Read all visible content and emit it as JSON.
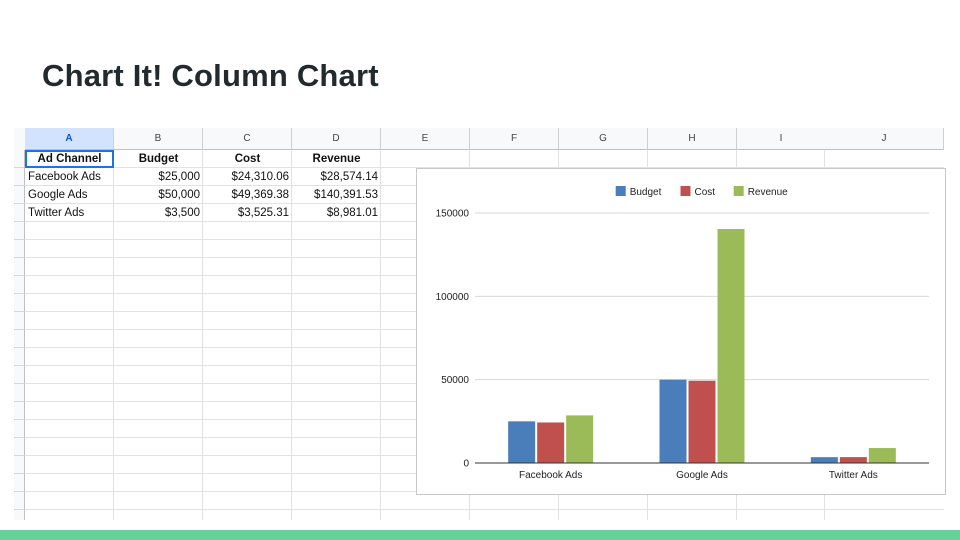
{
  "slide": {
    "title": "Chart It! Column Chart"
  },
  "sheet": {
    "columns": [
      "A",
      "B",
      "C",
      "D",
      "E",
      "F",
      "G",
      "H",
      "I",
      "J"
    ],
    "selected_column": "A",
    "header_row": [
      "Ad Channel",
      "Budget",
      "Cost",
      "Revenue"
    ],
    "rows": [
      [
        "Facebook Ads",
        "$25,000",
        "$24,310.06",
        "$28,574.14"
      ],
      [
        "Google Ads",
        "$50,000",
        "$49,369.38",
        "$140,391.53"
      ],
      [
        "Twitter Ads",
        "$3,500",
        "$3,525.31",
        "$8,981.01"
      ]
    ]
  },
  "chart_data": {
    "type": "bar",
    "title": "",
    "xlabel": "",
    "ylabel": "",
    "categories": [
      "Facebook Ads",
      "Google Ads",
      "Twitter Ads"
    ],
    "series": [
      {
        "name": "Budget",
        "color": "#4a7ebb",
        "values": [
          25000,
          50000,
          3500
        ]
      },
      {
        "name": "Cost",
        "color": "#c0504d",
        "values": [
          24310.06,
          49369.38,
          3525.31
        ]
      },
      {
        "name": "Revenue",
        "color": "#9bbb59",
        "values": [
          28574.14,
          140391.53,
          8981.01
        ]
      }
    ],
    "yticks": [
      0,
      50000,
      100000,
      150000
    ],
    "ylim": [
      0,
      150000
    ],
    "grid": true,
    "legend": "top"
  },
  "colors": {
    "accent_bar": "#66d199",
    "selection": "#1a73e8"
  }
}
